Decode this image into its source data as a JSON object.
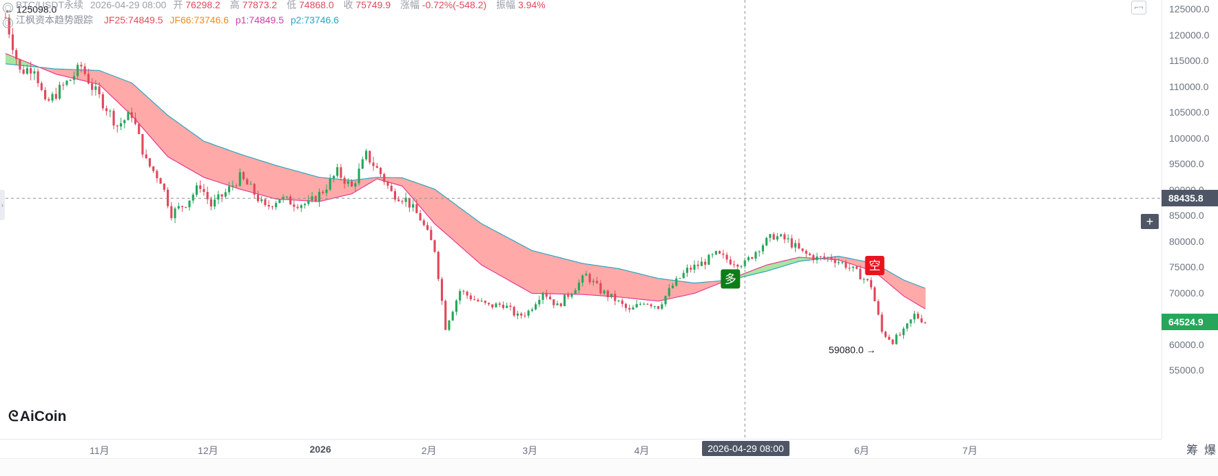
{
  "header": {
    "symbol": "BTC/USDT永续",
    "datetime": "2026-04-29 08:00",
    "open_label": "开",
    "open": "76298.2",
    "high_label": "高",
    "high": "77873.2",
    "low_label": "低",
    "low": "74868.0",
    "close_label": "收",
    "close": "75749.9",
    "change_label": "涨幅",
    "change": "-0.72%(-548.2)",
    "amplitude_label": "振幅",
    "amplitude": "3.94%"
  },
  "indicator": {
    "name": "江枫资本趋势跟踪",
    "jf25": "JF25:74849.5",
    "jf66": "JF66:73746.6",
    "p1": "p1:74849.5",
    "p2": "p2:73746.6"
  },
  "colors": {
    "up": "#26a65b",
    "down": "#e0485a",
    "bear_band": "#ffaaa8",
    "bull_band": "#a8e6a0",
    "fast_line": "#e8388f",
    "slow_line": "#2aa3bf",
    "long_marker": "#0d7d1a",
    "short_marker": "#e8141e"
  },
  "chart_data": {
    "type": "candlestick",
    "symbol": "BTC/USDT永续",
    "ylim": [
      50000,
      128000
    ],
    "y_ticks": [
      125000,
      120000,
      115000,
      110000,
      105000,
      100000,
      95000,
      90000,
      85000,
      80000,
      75000,
      70000,
      65000,
      60000,
      55000
    ],
    "x_ticks": [
      "11月",
      "12月",
      "2026",
      "2月",
      "3月",
      "4月",
      "6月",
      "7月"
    ],
    "x_tick_dates": [
      "2025-11-01",
      "2025-12-01",
      "2026-01-01",
      "2026-02-01",
      "2026-03-01",
      "2026-04-01",
      "2026-06-01",
      "2026-07-01"
    ],
    "start_date": "2025-10-06",
    "end_date": "2026-06-18",
    "crosshair": {
      "date": "2026-04-29",
      "time_label": "2026-04-29 08:00",
      "price": 88435.8,
      "price_label": "88435.8"
    },
    "last_price": {
      "value": 64524.9,
      "label": "64524.9"
    },
    "max_marker": {
      "value": 125098.0,
      "label": "125098.0",
      "date": "2025-10-06"
    },
    "min_marker": {
      "value": 59080.0,
      "label": "59080.0",
      "date": "2026-06-07"
    },
    "signals": [
      {
        "type": "long",
        "label": "多",
        "date": "2026-04-25",
        "price": 72800
      },
      {
        "type": "short",
        "label": "空",
        "date": "2026-06-04",
        "price": 75400
      }
    ],
    "close_series": [
      [
        "2025-10-06",
        123500
      ],
      [
        "2025-10-10",
        113000
      ],
      [
        "2025-10-14",
        114000
      ],
      [
        "2025-10-17",
        106500
      ],
      [
        "2025-10-21",
        109500
      ],
      [
        "2025-10-24",
        111500
      ],
      [
        "2025-10-27",
        114000
      ],
      [
        "2025-10-30",
        110000
      ],
      [
        "2025-11-03",
        106000
      ],
      [
        "2025-11-06",
        102500
      ],
      [
        "2025-11-10",
        104800
      ],
      [
        "2025-11-14",
        95500
      ],
      [
        "2025-11-18",
        92000
      ],
      [
        "2025-11-21",
        85500
      ],
      [
        "2025-11-25",
        87500
      ],
      [
        "2025-11-29",
        91000
      ],
      [
        "2025-12-02",
        87000
      ],
      [
        "2025-12-06",
        89500
      ],
      [
        "2025-12-10",
        92500
      ],
      [
        "2025-12-13",
        90300
      ],
      [
        "2025-12-17",
        86500
      ],
      [
        "2025-12-21",
        88500
      ],
      [
        "2025-12-25",
        87500
      ],
      [
        "2025-12-29",
        87300
      ],
      [
        "2026-01-02",
        89900
      ],
      [
        "2026-01-06",
        93500
      ],
      [
        "2026-01-10",
        90500
      ],
      [
        "2026-01-14",
        96800
      ],
      [
        "2026-01-18",
        93200
      ],
      [
        "2026-01-21",
        89500
      ],
      [
        "2026-01-25",
        88200
      ],
      [
        "2026-01-29",
        84500
      ],
      [
        "2026-02-02",
        78500
      ],
      [
        "2026-02-05",
        63500
      ],
      [
        "2026-02-09",
        70500
      ],
      [
        "2026-02-13",
        68800
      ],
      [
        "2026-02-17",
        67500
      ],
      [
        "2026-02-21",
        67900
      ],
      [
        "2026-02-25",
        65500
      ],
      [
        "2026-02-28",
        66500
      ],
      [
        "2026-03-04",
        70500
      ],
      [
        "2026-03-08",
        67500
      ],
      [
        "2026-03-12",
        70500
      ],
      [
        "2026-03-16",
        73500
      ],
      [
        "2026-03-20",
        70500
      ],
      [
        "2026-03-24",
        68800
      ],
      [
        "2026-03-28",
        66500
      ],
      [
        "2026-04-01",
        68500
      ],
      [
        "2026-04-05",
        67500
      ],
      [
        "2026-04-09",
        71500
      ],
      [
        "2026-04-13",
        74500
      ],
      [
        "2026-04-17",
        75800
      ],
      [
        "2026-04-21",
        77500
      ],
      [
        "2026-04-25",
        76300
      ],
      [
        "2026-04-29",
        75749.9
      ],
      [
        "2026-05-03",
        79000
      ],
      [
        "2026-05-07",
        81200
      ],
      [
        "2026-05-11",
        80200
      ],
      [
        "2026-05-15",
        77800
      ],
      [
        "2026-05-19",
        76800
      ],
      [
        "2026-05-23",
        76900
      ],
      [
        "2026-05-27",
        75500
      ],
      [
        "2026-05-31",
        73500
      ],
      [
        "2026-06-03",
        71500
      ],
      [
        "2026-06-06",
        62500
      ],
      [
        "2026-06-09",
        60800
      ],
      [
        "2026-06-12",
        62500
      ],
      [
        "2026-06-15",
        65800
      ],
      [
        "2026-06-18",
        64524.9
      ]
    ],
    "p1_series": [
      [
        "2025-10-06",
        116500
      ],
      [
        "2025-10-20",
        112500
      ],
      [
        "2025-11-01",
        110500
      ],
      [
        "2025-11-10",
        104500
      ],
      [
        "2025-11-20",
        96500
      ],
      [
        "2025-11-30",
        92500
      ],
      [
        "2025-12-10",
        90200
      ],
      [
        "2025-12-20",
        88300
      ],
      [
        "2026-01-01",
        87800
      ],
      [
        "2026-01-10",
        89300
      ],
      [
        "2026-01-17",
        92200
      ],
      [
        "2026-01-24",
        90800
      ],
      [
        "2026-02-02",
        83500
      ],
      [
        "2026-02-15",
        75500
      ],
      [
        "2026-03-01",
        70000
      ],
      [
        "2026-03-15",
        69800
      ],
      [
        "2026-03-25",
        69300
      ],
      [
        "2026-04-05",
        68500
      ],
      [
        "2026-04-15",
        70000
      ],
      [
        "2026-04-25",
        72800
      ],
      [
        "2026-05-05",
        75500
      ],
      [
        "2026-05-14",
        77000
      ],
      [
        "2026-05-25",
        76500
      ],
      [
        "2026-06-04",
        74200
      ],
      [
        "2026-06-12",
        69500
      ],
      [
        "2026-06-18",
        67000
      ]
    ],
    "p2_series": [
      [
        "2025-10-06",
        114500
      ],
      [
        "2025-10-20",
        113500
      ],
      [
        "2025-11-01",
        113200
      ],
      [
        "2025-11-10",
        110800
      ],
      [
        "2025-11-20",
        104500
      ],
      [
        "2025-11-30",
        99500
      ],
      [
        "2025-12-10",
        97000
      ],
      [
        "2025-12-20",
        94800
      ],
      [
        "2026-01-01",
        92500
      ],
      [
        "2026-01-10",
        91900
      ],
      [
        "2026-01-17",
        92500
      ],
      [
        "2026-01-24",
        92400
      ],
      [
        "2026-02-02",
        90200
      ],
      [
        "2026-02-15",
        83500
      ],
      [
        "2026-03-01",
        78300
      ],
      [
        "2026-03-15",
        75800
      ],
      [
        "2026-03-25",
        74800
      ],
      [
        "2026-04-05",
        72900
      ],
      [
        "2026-04-15",
        72000
      ],
      [
        "2026-04-25",
        72600
      ],
      [
        "2026-05-05",
        74300
      ],
      [
        "2026-05-14",
        76200
      ],
      [
        "2026-05-25",
        77200
      ],
      [
        "2026-06-04",
        75800
      ],
      [
        "2026-06-12",
        72600
      ],
      [
        "2026-06-18",
        71000
      ]
    ]
  },
  "branding": {
    "logo": "AiCoin"
  },
  "sidebar_right": {
    "item1": "筹",
    "item2": "爆"
  }
}
